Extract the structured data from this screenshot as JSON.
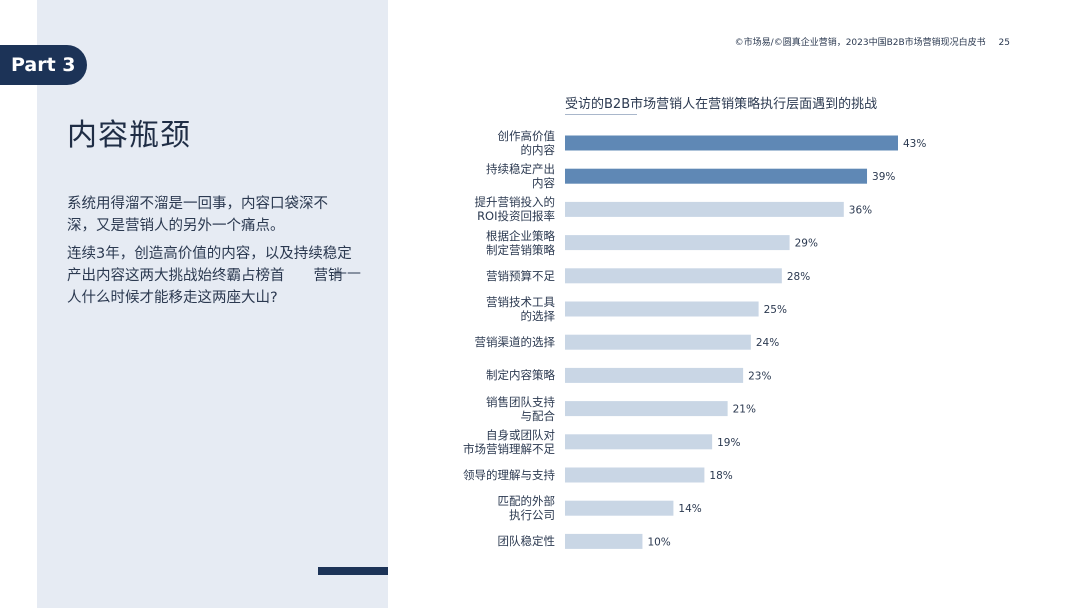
{
  "header": {
    "part_badge": "Part 3",
    "source": "©市场易/©圆真企业营销，2023中国B2B市场营销现况白皮书",
    "page_number": "25"
  },
  "left": {
    "title": "内容瓶颈",
    "paragraph1": "系统用得溜不溜是一回事，内容口袋深不深，又是营销人的另外一个痛点。",
    "paragraph2": "连续3年，创造高价值的内容，以及持续稳定产出内容这两大挑战始终霸占榜首　　营销人什么时候才能移走这两座大山?",
    "dash": "——"
  },
  "colors": {
    "highlight_bar": "#5f88b5",
    "normal_bar": "#c9d6e5",
    "brand": "#1c3357"
  },
  "chart_data": {
    "type": "bar",
    "orientation": "horizontal",
    "title": "受访的B2B市场营销人在营销策略执行层面遇到的挑战",
    "categories": [
      "创作高价值\n的内容",
      "持续稳定产出\n内容",
      "提升营销投入的\nROI投资回报率",
      "根据企业策略\n制定营销策略",
      "营销预算不足",
      "营销技术工具\n的选择",
      "营销渠道的选择",
      "制定内容策略",
      "销售团队支持\n与配合",
      "自身或团队对\n市场营销理解不足",
      "领导的理解与支持",
      "匹配的外部\n执行公司",
      "团队稳定性"
    ],
    "values": [
      43,
      39,
      36,
      29,
      28,
      25,
      24,
      23,
      21,
      19,
      18,
      14,
      10
    ],
    "value_labels": [
      "43%",
      "39%",
      "36%",
      "29%",
      "28%",
      "25%",
      "24%",
      "23%",
      "21%",
      "19%",
      "18%",
      "14%",
      "10%"
    ],
    "highlighted": [
      0,
      1
    ],
    "xlim": [
      0,
      43
    ],
    "unit": "%"
  }
}
